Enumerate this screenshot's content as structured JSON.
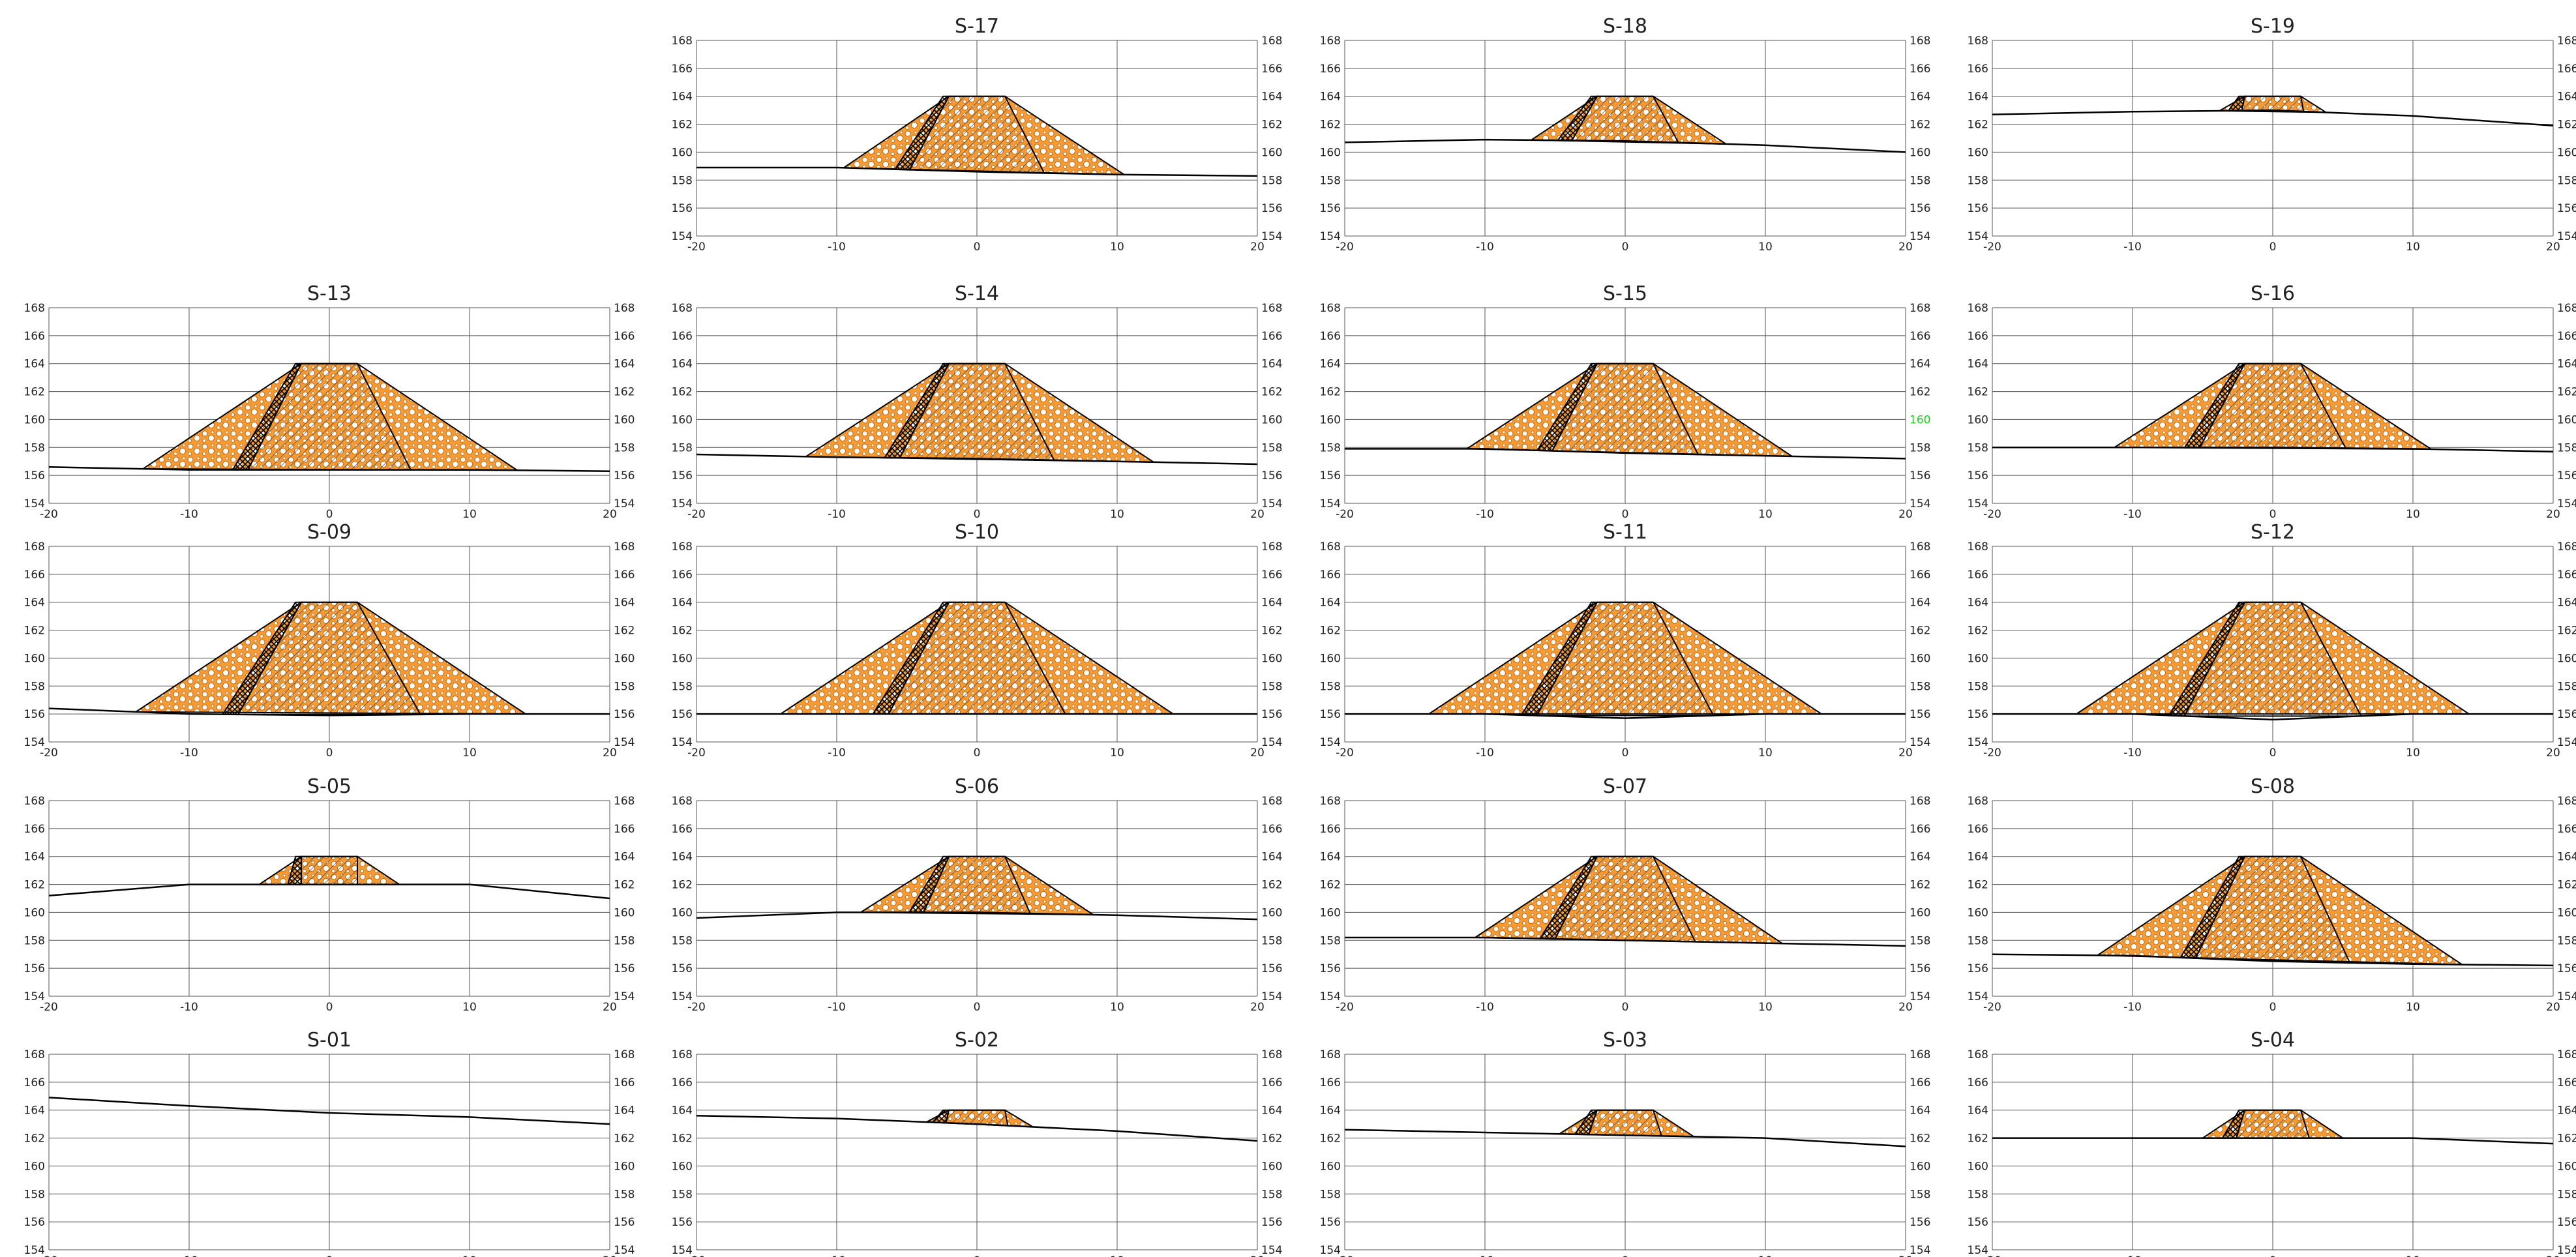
{
  "axis": {
    "x_range": [
      -20,
      20
    ],
    "y_range": [
      154,
      168
    ],
    "x_ticks": [
      -20,
      -10,
      0,
      10,
      20
    ],
    "y_ticks": [
      154,
      156,
      158,
      160,
      162,
      164,
      166,
      168
    ]
  },
  "colors": {
    "fill_orange": "#f59a35",
    "line": "#000000",
    "grid": "#555555",
    "highlight_label": "#22cc22"
  },
  "sections": [
    {
      "name": "S-17",
      "crest": 164,
      "crest_half_width": 2,
      "core_base_half": 4.8,
      "filter_offset": -3.0,
      "outer_left": -9.5,
      "outer_right": 10.5,
      "ground": [
        [
          -20,
          158.9
        ],
        [
          -10,
          158.9
        ],
        [
          0,
          158.6
        ],
        [
          10,
          158.4
        ],
        [
          20,
          158.3
        ]
      ]
    },
    {
      "name": "S-18",
      "crest": 164,
      "crest_half_width": 2,
      "core_base_half": 3.8,
      "filter_offset": -2.2,
      "outer_left": -6.7,
      "outer_right": 7.2,
      "ground": [
        [
          -20,
          160.7
        ],
        [
          -10,
          160.9
        ],
        [
          0,
          160.8
        ],
        [
          10,
          160.5
        ],
        [
          20,
          160.0
        ]
      ]
    },
    {
      "name": "S-19",
      "crest": 164,
      "crest_half_width": 2,
      "core_base_half": 2.2,
      "filter_offset": -1.2,
      "outer_left": -3.8,
      "outer_right": 3.8,
      "ground": [
        [
          -20,
          162.7
        ],
        [
          -10,
          162.9
        ],
        [
          0,
          163.0
        ],
        [
          10,
          162.6
        ],
        [
          20,
          161.9
        ]
      ]
    },
    {
      "name": "S-13",
      "crest": 164,
      "crest_half_width": 2,
      "core_base_half": 5.8,
      "filter_offset": -3.8,
      "outer_left": -13.3,
      "outer_right": 13.4,
      "ground": [
        [
          -20,
          156.6
        ],
        [
          -10,
          156.4
        ],
        [
          0,
          156.4
        ],
        [
          10,
          156.4
        ],
        [
          20,
          156.3
        ]
      ]
    },
    {
      "name": "S-14",
      "crest": 164,
      "crest_half_width": 2,
      "core_base_half": 5.5,
      "filter_offset": -3.6,
      "outer_left": -12.2,
      "outer_right": 12.6,
      "ground": [
        [
          -20,
          157.5
        ],
        [
          -10,
          157.3
        ],
        [
          0,
          157.2
        ],
        [
          10,
          157.0
        ],
        [
          20,
          156.8
        ]
      ]
    },
    {
      "name": "S-15",
      "crest": 164,
      "crest_half_width": 2,
      "core_base_half": 5.2,
      "filter_offset": -3.5,
      "outer_left": -11.3,
      "outer_right": 11.9,
      "ground": [
        [
          -20,
          157.9
        ],
        [
          -10,
          157.9
        ],
        [
          0,
          157.6
        ],
        [
          10,
          157.4
        ],
        [
          20,
          157.2
        ]
      ]
    },
    {
      "name": "S-16",
      "crest": 164,
      "crest_half_width": 2,
      "core_base_half": 5.2,
      "filter_offset": -3.5,
      "outer_left": -11.3,
      "outer_right": 11.3,
      "ground": [
        [
          -20,
          158.0
        ],
        [
          -10,
          158.0
        ],
        [
          0,
          158.0
        ],
        [
          10,
          157.9
        ],
        [
          20,
          157.7
        ]
      ]
    },
    {
      "name": "S-09",
      "crest": 164,
      "crest_half_width": 2,
      "core_base_half": 6.5,
      "filter_offset": -4.3,
      "outer_left": -13.8,
      "outer_right": 14.0,
      "ground": [
        [
          -20,
          156.4
        ],
        [
          -10,
          156.0
        ],
        [
          0,
          155.9
        ],
        [
          10,
          156.0
        ],
        [
          20,
          156.0
        ]
      ]
    },
    {
      "name": "S-10",
      "crest": 164,
      "crest_half_width": 2,
      "core_base_half": 6.3,
      "filter_offset": -4.2,
      "outer_left": -14.0,
      "outer_right": 14.0,
      "ground": [
        [
          -20,
          156.0
        ],
        [
          -10,
          156.0
        ],
        [
          0,
          156.0
        ],
        [
          10,
          156.0
        ],
        [
          20,
          156.0
        ]
      ]
    },
    {
      "name": "S-11",
      "crest": 164,
      "crest_half_width": 2,
      "core_base_half": 6.3,
      "filter_offset": -4.2,
      "outer_left": -14.0,
      "outer_right": 14.0,
      "ground": [
        [
          -20,
          156.0
        ],
        [
          -10,
          156.0
        ],
        [
          0,
          155.7
        ],
        [
          10,
          156.0
        ],
        [
          20,
          156.0
        ]
      ]
    },
    {
      "name": "S-12",
      "crest": 164,
      "crest_half_width": 2,
      "core_base_half": 6.3,
      "filter_offset": -4.2,
      "outer_left": -14.0,
      "outer_right": 14.0,
      "ground": [
        [
          -20,
          156.0
        ],
        [
          -10,
          156.0
        ],
        [
          0,
          155.6
        ],
        [
          10,
          156.0
        ],
        [
          20,
          156.0
        ]
      ]
    },
    {
      "name": "S-05",
      "crest": 164,
      "crest_half_width": 2,
      "core_base_half": 2.0,
      "filter_offset": -1.1,
      "outer_left": -5.0,
      "outer_right": 5.0,
      "ground": [
        [
          -20,
          161.2
        ],
        [
          -10,
          162.0
        ],
        [
          0,
          162.0
        ],
        [
          10,
          162.0
        ],
        [
          20,
          161.0
        ]
      ]
    },
    {
      "name": "S-06",
      "crest": 164,
      "crest_half_width": 2,
      "core_base_half": 3.8,
      "filter_offset": -2.4,
      "outer_left": -8.3,
      "outer_right": 8.3,
      "ground": [
        [
          -20,
          159.6
        ],
        [
          -10,
          160.0
        ],
        [
          0,
          160.0
        ],
        [
          10,
          159.8
        ],
        [
          20,
          159.5
        ]
      ]
    },
    {
      "name": "S-07",
      "crest": 164,
      "crest_half_width": 2,
      "core_base_half": 5.0,
      "filter_offset": -3.4,
      "outer_left": -10.7,
      "outer_right": 11.2,
      "ground": [
        [
          -20,
          158.2
        ],
        [
          -10,
          158.2
        ],
        [
          0,
          158.0
        ],
        [
          10,
          157.8
        ],
        [
          20,
          157.6
        ]
      ]
    },
    {
      "name": "S-08",
      "crest": 164,
      "crest_half_width": 2,
      "core_base_half": 5.5,
      "filter_offset": -3.6,
      "outer_left": -12.5,
      "outer_right": 13.5,
      "ground": [
        [
          -20,
          157.0
        ],
        [
          -10,
          156.9
        ],
        [
          0,
          156.5
        ],
        [
          10,
          156.3
        ],
        [
          20,
          156.2
        ]
      ]
    },
    {
      "name": "S-01",
      "crest": null,
      "ground": [
        [
          -20,
          164.9
        ],
        [
          -10,
          164.3
        ],
        [
          0,
          163.8
        ],
        [
          10,
          163.5
        ],
        [
          20,
          163.0
        ]
      ]
    },
    {
      "name": "S-02",
      "crest": 164,
      "crest_half_width": 2,
      "core_base_half": 2.2,
      "filter_offset": -1.1,
      "outer_left": -3.6,
      "outer_right": 4.0,
      "ground": [
        [
          -20,
          163.6
        ],
        [
          -10,
          163.4
        ],
        [
          0,
          163.0
        ],
        [
          10,
          162.5
        ],
        [
          20,
          161.8
        ]
      ]
    },
    {
      "name": "S-03",
      "crest": 164,
      "crest_half_width": 2,
      "core_base_half": 2.6,
      "filter_offset": -1.6,
      "outer_left": -4.7,
      "outer_right": 4.9,
      "ground": [
        [
          -20,
          162.6
        ],
        [
          -10,
          162.4
        ],
        [
          0,
          162.2
        ],
        [
          10,
          162.0
        ],
        [
          20,
          161.4
        ]
      ]
    },
    {
      "name": "S-04",
      "crest": 164,
      "crest_half_width": 2,
      "core_base_half": 2.6,
      "filter_offset": -1.6,
      "outer_left": -5.0,
      "outer_right": 5.0,
      "ground": [
        [
          -20,
          162.0
        ],
        [
          -10,
          162.0
        ],
        [
          0,
          162.0
        ],
        [
          10,
          162.0
        ],
        [
          20,
          161.6
        ]
      ]
    }
  ],
  "highlight": {
    "section": "S-15",
    "side": "right",
    "value": "160"
  }
}
